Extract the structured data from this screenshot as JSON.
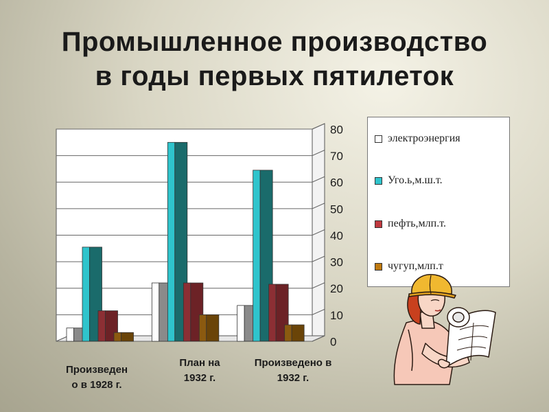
{
  "title_line1": "Промышленное производство",
  "title_line2": "в годы первых пятилеток",
  "chart_data": {
    "type": "bar",
    "categories": [
      "Произведено в 1928 г.",
      "План на 1932 г.",
      "Произведено в 1932 г."
    ],
    "category_lines": [
      [
        "Произведен",
        "о в 1928 г."
      ],
      [
        "План на",
        "1932 г."
      ],
      [
        "Произведено в",
        "1932 г."
      ]
    ],
    "series": [
      {
        "name": "электроэнергия",
        "values": [
          5,
          22,
          13.5
        ],
        "color": "#ffffff"
      },
      {
        "name": "Уголь,млн.т.",
        "values": [
          35.5,
          75,
          64.5
        ],
        "color": "#1a6b6b",
        "highlight": "#2fc4cc"
      },
      {
        "name": "нефть,млн.т.",
        "values": [
          11.5,
          22,
          21.5
        ],
        "color": "#7a2a2e"
      },
      {
        "name": "чугун,млн.т",
        "values": [
          3.3,
          10,
          6.2
        ],
        "color": "#8b5a10"
      }
    ],
    "ylim": [
      0,
      80
    ],
    "yticks": [
      0,
      10,
      20,
      30,
      40,
      50,
      60,
      70,
      80
    ],
    "ytick_labels": [
      "0",
      "10",
      "20",
      "30",
      "40",
      "50",
      "60",
      "70",
      "80"
    ],
    "y_axis_side": "right",
    "grid": true,
    "legend_position": "right",
    "legend_labels": [
      "электроэнергия",
      "Уго.ь,м.ш.т.",
      "пефть,млп.т.",
      "чугуп,млп.т"
    ]
  },
  "illustration": "woman-with-hard-hat-and-blueprint"
}
